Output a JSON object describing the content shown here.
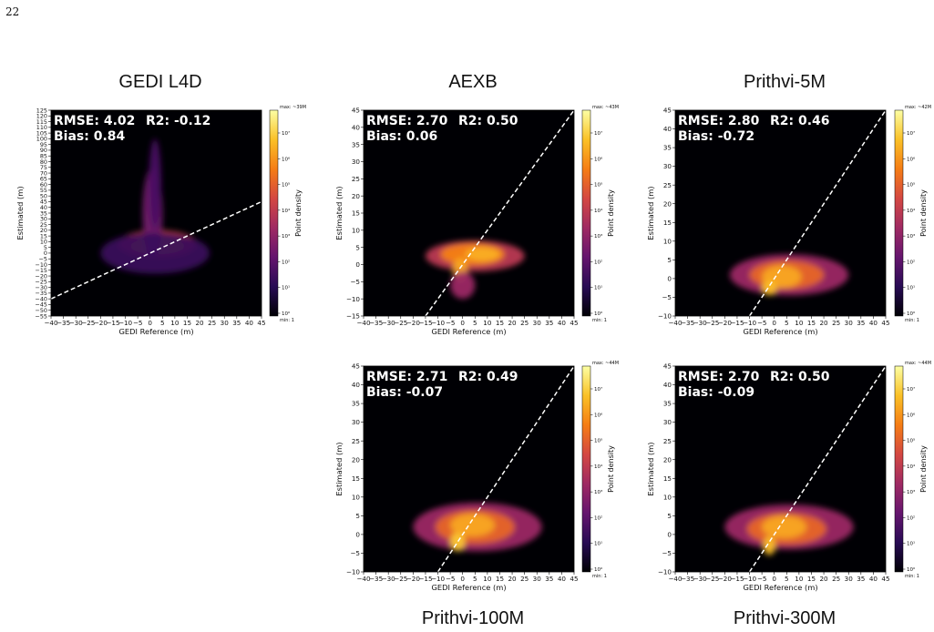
{
  "page_number": "22",
  "panels": [
    {
      "id": "gedi-l4d",
      "title": "GEDI L4D",
      "rmse_text": "RMSE: 4.02",
      "r2_text": "R2: -0.12",
      "bias_text": "Bias: 0.84",
      "max_text": "max: ~39M",
      "min_text": "min: 1"
    },
    {
      "id": "aexb",
      "title": "AEXB",
      "rmse_text": "RMSE: 2.70",
      "r2_text": "R2: 0.50",
      "bias_text": "Bias: 0.06",
      "max_text": "max: ~43M",
      "min_text": "min: 1"
    },
    {
      "id": "prithvi-5m",
      "title": "Prithvi-5M",
      "rmse_text": "RMSE: 2.80",
      "r2_text": "R2: 0.46",
      "bias_text": "Bias: -0.72",
      "max_text": "max: ~42M",
      "min_text": "min: 1"
    },
    {
      "id": "prithvi-100m",
      "title": "Prithvi-100M",
      "rmse_text": "RMSE: 2.71",
      "r2_text": "R2: 0.49",
      "bias_text": "Bias: -0.07",
      "max_text": "max: ~44M",
      "min_text": "min: 1"
    },
    {
      "id": "prithvi-300m",
      "title": "Prithvi-300M",
      "rmse_text": "RMSE: 2.70",
      "r2_text": "R2: 0.50",
      "bias_text": "Bias: -0.09",
      "max_text": "max: ~44M",
      "min_text": "min: 1"
    }
  ],
  "colorbar": {
    "label": "Point density",
    "ticks": [
      "10⁰",
      "10¹",
      "10²",
      "10³",
      "10⁴",
      "10⁵",
      "10⁶",
      "10⁷"
    ],
    "colors": [
      "#000004",
      "#280b54",
      "#65156e",
      "#9f2a63",
      "#d44842",
      "#f57d15",
      "#fac127",
      "#fcffa4"
    ]
  },
  "chart_data": [
    {
      "type": "heatmap",
      "title": "GEDI L4D",
      "xlabel": "GEDI Reference (m)",
      "ylabel": "Estimated (m)",
      "xlim": [
        -40,
        45
      ],
      "ylim": [
        -55,
        125
      ],
      "xticks": [
        -40,
        -35,
        -30,
        -25,
        -20,
        -15,
        -10,
        -5,
        0,
        5,
        10,
        15,
        20,
        25,
        30,
        35,
        40,
        45
      ],
      "yticks": [
        -55,
        -50,
        -45,
        -40,
        -35,
        -30,
        -25,
        -20,
        -15,
        -10,
        -5,
        0,
        5,
        10,
        15,
        20,
        25,
        30,
        35,
        40,
        45,
        50,
        55,
        60,
        65,
        70,
        75,
        80,
        85,
        90,
        95,
        100,
        105,
        110,
        115,
        120,
        125
      ],
      "color_scale": "log",
      "colorbar_range": [
        1,
        39000000
      ],
      "reference_line": "y = x",
      "density_blobs": [
        {
          "cx": 3,
          "cy": 8,
          "rx": 16,
          "ry": 12,
          "level": 0.55
        },
        {
          "cx": 3,
          "cy": 6,
          "rx": 11,
          "ry": 7,
          "level": 0.7
        },
        {
          "cx": 2,
          "cy": 4,
          "rx": 6,
          "ry": 4,
          "level": 0.88
        },
        {
          "cx": 1,
          "cy": 35,
          "rx": 4,
          "ry": 40,
          "level": 0.32
        },
        {
          "cx": 2,
          "cy": 60,
          "rx": 2.5,
          "ry": 40,
          "level": 0.22
        },
        {
          "cx": 2,
          "cy": 0,
          "rx": 22,
          "ry": 18,
          "level": 0.18
        }
      ],
      "stats": {
        "rmse": 4.02,
        "r2": -0.12,
        "bias": 0.84
      }
    },
    {
      "type": "heatmap",
      "title": "AEXB",
      "xlabel": "GEDI Reference (m)",
      "ylabel": "Estimated (m)",
      "xlim": [
        -40,
        45
      ],
      "ylim": [
        -15,
        45
      ],
      "xticks": [
        -40,
        -35,
        -30,
        -25,
        -20,
        -15,
        -10,
        -5,
        0,
        5,
        10,
        15,
        20,
        25,
        30,
        35,
        40,
        45
      ],
      "yticks": [
        -15,
        -10,
        -5,
        0,
        5,
        10,
        15,
        20,
        25,
        30,
        35,
        40,
        45
      ],
      "color_scale": "log",
      "colorbar_range": [
        1,
        43000000
      ],
      "reference_line": "y = x",
      "density_blobs": [
        {
          "cx": 5,
          "cy": 2.5,
          "rx": 20,
          "ry": 4.5,
          "level": 0.5
        },
        {
          "cx": 4,
          "cy": 3,
          "rx": 13,
          "ry": 3.2,
          "level": 0.72
        },
        {
          "cx": -1,
          "cy": -1.5,
          "rx": 3,
          "ry": 3.5,
          "level": 0.8
        },
        {
          "cx": 0,
          "cy": -6,
          "rx": 5,
          "ry": 4,
          "level": 0.42
        },
        {
          "cx": 8,
          "cy": 3,
          "rx": 7,
          "ry": 2,
          "level": 0.82
        }
      ],
      "stats": {
        "rmse": 2.7,
        "r2": 0.5,
        "bias": 0.06
      }
    },
    {
      "type": "heatmap",
      "title": "Prithvi-5M",
      "xlabel": "GEDI Reference (m)",
      "ylabel": "Estimated (m)",
      "xlim": [
        -40,
        45
      ],
      "ylim": [
        -10,
        45
      ],
      "xticks": [
        -40,
        -35,
        -30,
        -25,
        -20,
        -15,
        -10,
        -5,
        0,
        5,
        10,
        15,
        20,
        25,
        30,
        35,
        40,
        45
      ],
      "yticks": [
        -10,
        -5,
        0,
        5,
        10,
        15,
        20,
        25,
        30,
        35,
        40,
        45
      ],
      "color_scale": "log",
      "colorbar_range": [
        1,
        42000000
      ],
      "reference_line": "y = x",
      "density_blobs": [
        {
          "cx": 6,
          "cy": 1,
          "rx": 24,
          "ry": 5.5,
          "level": 0.42
        },
        {
          "cx": 5,
          "cy": 1,
          "rx": 15,
          "ry": 3.8,
          "level": 0.65
        },
        {
          "cx": 3,
          "cy": 0.5,
          "rx": 8,
          "ry": 3,
          "level": 0.8
        },
        {
          "cx": -2,
          "cy": -2.5,
          "rx": 3,
          "ry": 2,
          "level": 0.85
        }
      ],
      "stats": {
        "rmse": 2.8,
        "r2": 0.46,
        "bias": -0.72
      }
    },
    {
      "type": "heatmap",
      "title": "Prithvi-100M",
      "xlabel": "GEDI Reference (m)",
      "ylabel": "Estimated (m)",
      "xlim": [
        -40,
        45
      ],
      "ylim": [
        -10,
        45
      ],
      "xticks": [
        -40,
        -35,
        -30,
        -25,
        -20,
        -15,
        -10,
        -5,
        0,
        5,
        10,
        15,
        20,
        25,
        30,
        35,
        40,
        45
      ],
      "yticks": [
        -10,
        -5,
        0,
        5,
        10,
        15,
        20,
        25,
        30,
        35,
        40,
        45
      ],
      "color_scale": "log",
      "colorbar_range": [
        1,
        44000000
      ],
      "reference_line": "y = x",
      "density_blobs": [
        {
          "cx": 6,
          "cy": 2,
          "rx": 26,
          "ry": 6.5,
          "level": 0.42
        },
        {
          "cx": 5,
          "cy": 2,
          "rx": 16,
          "ry": 4.5,
          "level": 0.65
        },
        {
          "cx": 4,
          "cy": 2.5,
          "rx": 9,
          "ry": 3,
          "level": 0.8
        },
        {
          "cx": -2,
          "cy": -2,
          "rx": 3,
          "ry": 2.5,
          "level": 0.87
        }
      ],
      "stats": {
        "rmse": 2.71,
        "r2": 0.49,
        "bias": -0.07
      }
    },
    {
      "type": "heatmap",
      "title": "Prithvi-300M",
      "xlabel": "GEDI Reference (m)",
      "ylabel": "Estimated (m)",
      "xlim": [
        -40,
        45
      ],
      "ylim": [
        -10,
        45
      ],
      "xticks": [
        -40,
        -35,
        -30,
        -25,
        -20,
        -15,
        -10,
        -5,
        0,
        5,
        10,
        15,
        20,
        25,
        30,
        35,
        40,
        45
      ],
      "yticks": [
        -10,
        -5,
        0,
        5,
        10,
        15,
        20,
        25,
        30,
        35,
        40,
        45
      ],
      "color_scale": "log",
      "colorbar_range": [
        1,
        44000000
      ],
      "reference_line": "y = x",
      "density_blobs": [
        {
          "cx": 6,
          "cy": 2,
          "rx": 26,
          "ry": 6,
          "level": 0.42
        },
        {
          "cx": 5,
          "cy": 1.5,
          "rx": 16,
          "ry": 4.2,
          "level": 0.65
        },
        {
          "cx": 4,
          "cy": 2,
          "rx": 9,
          "ry": 3,
          "level": 0.8
        },
        {
          "cx": -2,
          "cy": -3,
          "rx": 2.5,
          "ry": 2.5,
          "level": 0.85
        }
      ],
      "stats": {
        "rmse": 2.7,
        "r2": 0.5,
        "bias": -0.09
      }
    }
  ]
}
